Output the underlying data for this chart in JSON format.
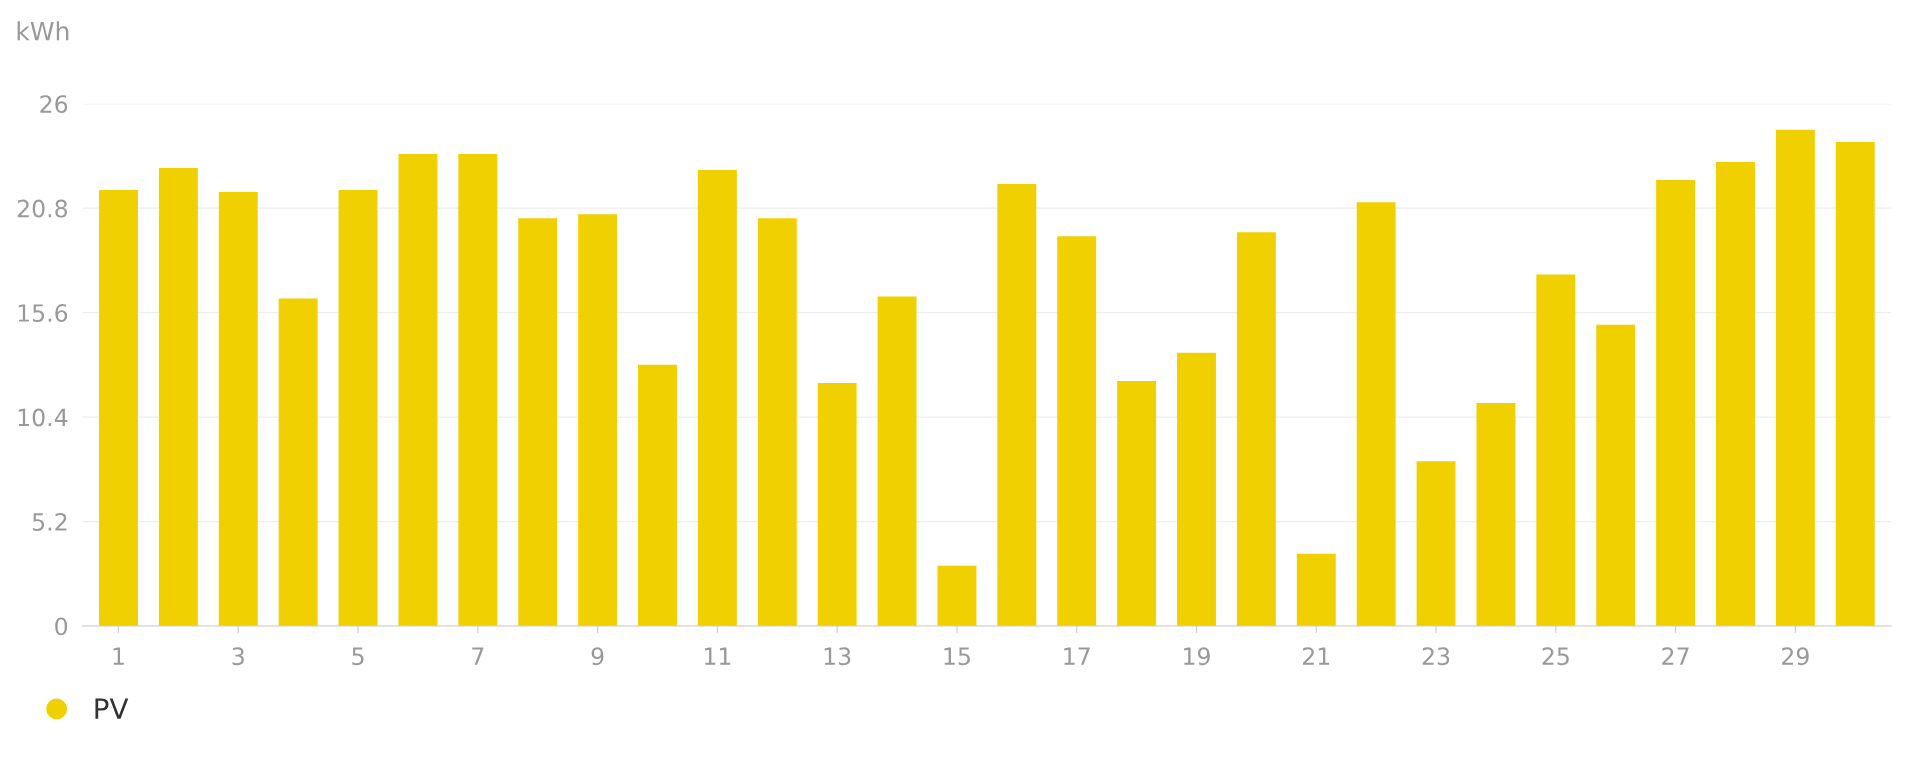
{
  "chart_data": {
    "type": "bar",
    "ylabel": "kWh",
    "categories": [
      "1",
      null,
      "3",
      null,
      "5",
      null,
      "7",
      null,
      "9",
      null,
      "11",
      null,
      "13",
      null,
      "15",
      null,
      "17",
      null,
      "19",
      null,
      "21",
      null,
      "23",
      null,
      "25",
      null,
      "27",
      null,
      "29",
      null
    ],
    "series": [
      {
        "name": "PV",
        "color": "#f0d000",
        "values": [
          21.7,
          22.8,
          21.6,
          16.3,
          21.7,
          23.5,
          23.5,
          20.3,
          20.5,
          13.0,
          22.7,
          20.3,
          12.1,
          16.4,
          3.0,
          22.0,
          19.4,
          12.2,
          13.6,
          19.6,
          3.6,
          21.1,
          8.2,
          11.1,
          17.5,
          15.0,
          22.2,
          23.1,
          24.7,
          24.1
        ]
      }
    ],
    "ylim": [
      0,
      26
    ],
    "yticks": [
      0,
      5.2,
      10.4,
      15.6,
      20.8,
      26
    ],
    "grid": "y",
    "legend": "bottom left"
  }
}
